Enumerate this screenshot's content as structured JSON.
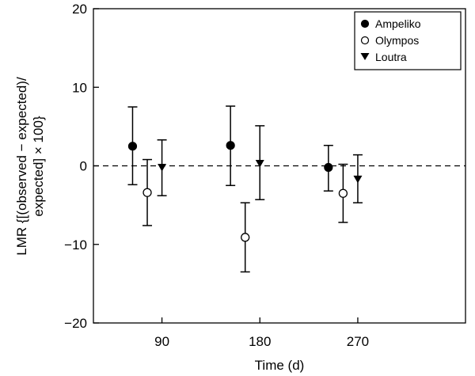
{
  "chart_data": {
    "type": "scatter",
    "xlabel": "Time (d)",
    "ylabel_lines": [
      "LMR {[(observed − expected)/",
      "expected] × 100}"
    ],
    "x_ticks": [
      90,
      180,
      270
    ],
    "y_ticks": [
      20,
      10,
      0,
      -10,
      -20
    ],
    "ylim": [
      -20,
      20
    ],
    "xlim": [
      -0.7,
      3.1
    ],
    "reference_line": {
      "y": 0,
      "style": "dashed"
    },
    "legend_position": "top-right",
    "series": [
      {
        "name": "Ampeliko",
        "marker": "filled-circle",
        "points": [
          {
            "time": 90,
            "y": 2.5,
            "low": -2.4,
            "high": 7.5
          },
          {
            "time": 180,
            "y": 2.6,
            "low": -2.5,
            "high": 7.6
          },
          {
            "time": 270,
            "y": -0.2,
            "low": -3.2,
            "high": 2.6
          }
        ]
      },
      {
        "name": "Olympos",
        "marker": "open-circle",
        "points": [
          {
            "time": 90,
            "y": -3.4,
            "low": -7.6,
            "high": 0.8
          },
          {
            "time": 180,
            "y": -9.1,
            "low": -13.5,
            "high": -4.7
          },
          {
            "time": 270,
            "y": -3.5,
            "low": -7.2,
            "high": 0.2
          }
        ]
      },
      {
        "name": "Loutra",
        "marker": "filled-triangle-down",
        "points": [
          {
            "time": 90,
            "y": -0.2,
            "low": -3.8,
            "high": 3.3
          },
          {
            "time": 180,
            "y": 0.3,
            "low": -4.3,
            "high": 5.1
          },
          {
            "time": 270,
            "y": -1.7,
            "low": -4.7,
            "high": 1.4
          }
        ]
      }
    ]
  }
}
